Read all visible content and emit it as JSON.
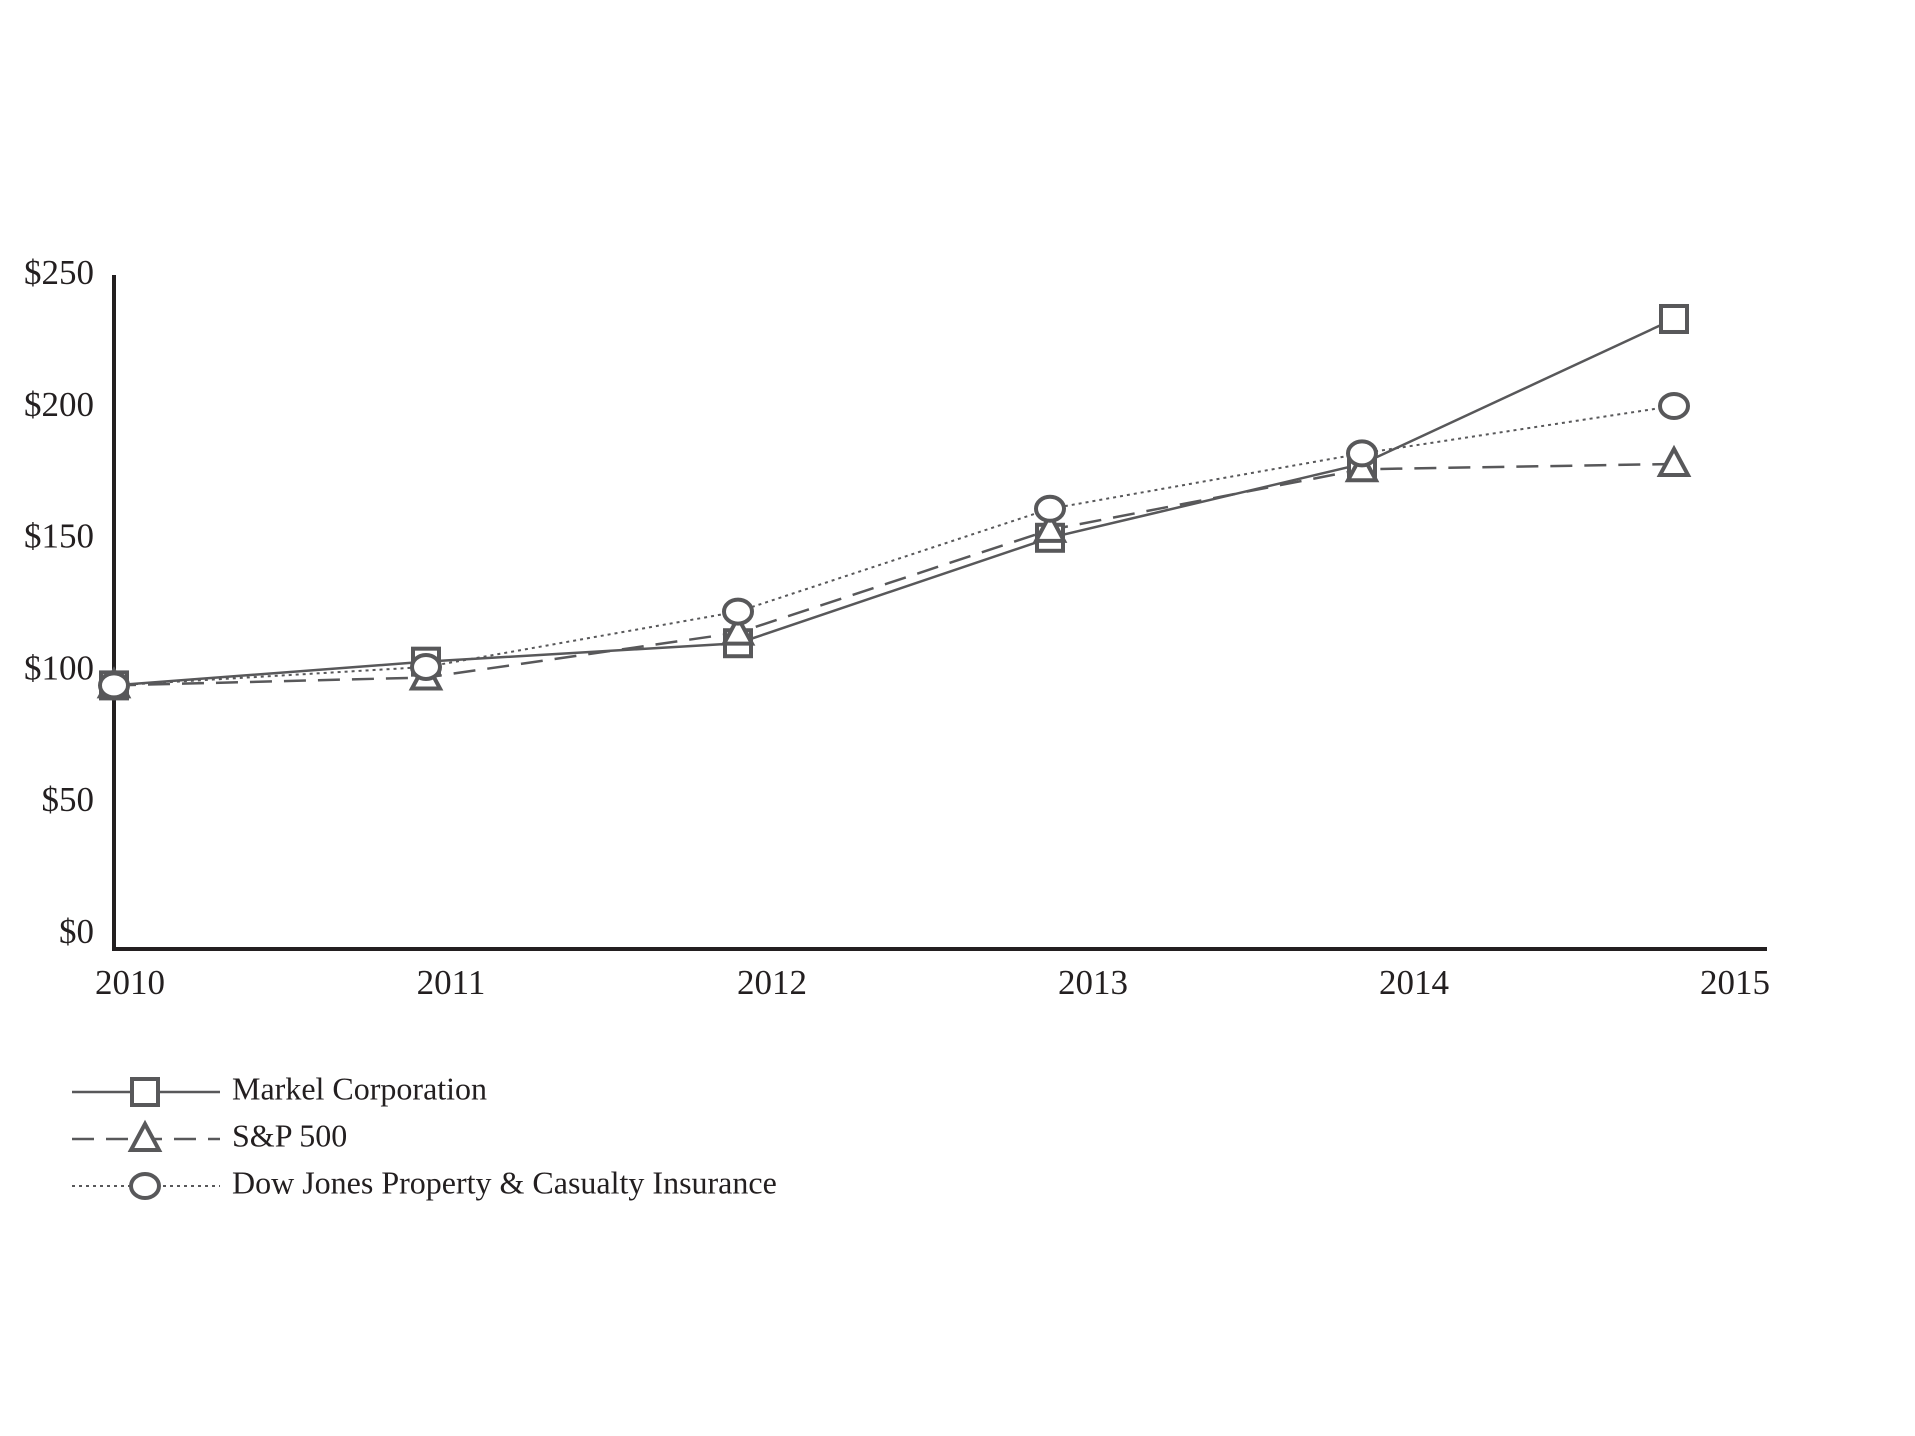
{
  "chart_data": {
    "type": "line",
    "categories": [
      "2010",
      "2011",
      "2012",
      "2013",
      "2014",
      "2015"
    ],
    "series": [
      {
        "name": "Markel Corporation",
        "color": "#58585a",
        "dash": "solid",
        "marker": "square",
        "values": [
          100,
          109,
          116,
          156,
          184,
          239
        ]
      },
      {
        "name": "S&P 500",
        "color": "#58585a",
        "dash": "dashed",
        "marker": "triangle",
        "values": [
          100,
          103,
          120,
          159,
          182,
          184
        ]
      },
      {
        "name": "Dow Jones Property & Casualty Insurance",
        "color": "#58585a",
        "dash": "dotted",
        "marker": "circle",
        "values": [
          100,
          107,
          128,
          167,
          188,
          206
        ]
      }
    ],
    "ylim": [
      0,
      250
    ],
    "yticks": [
      {
        "value": 0,
        "label": "$0"
      },
      {
        "value": 50,
        "label": "$50"
      },
      {
        "value": 100,
        "label": "$100"
      },
      {
        "value": 150,
        "label": "$150"
      },
      {
        "value": 200,
        "label": "$200"
      },
      {
        "value": 250,
        "label": "$250"
      }
    ],
    "grid": false
  }
}
